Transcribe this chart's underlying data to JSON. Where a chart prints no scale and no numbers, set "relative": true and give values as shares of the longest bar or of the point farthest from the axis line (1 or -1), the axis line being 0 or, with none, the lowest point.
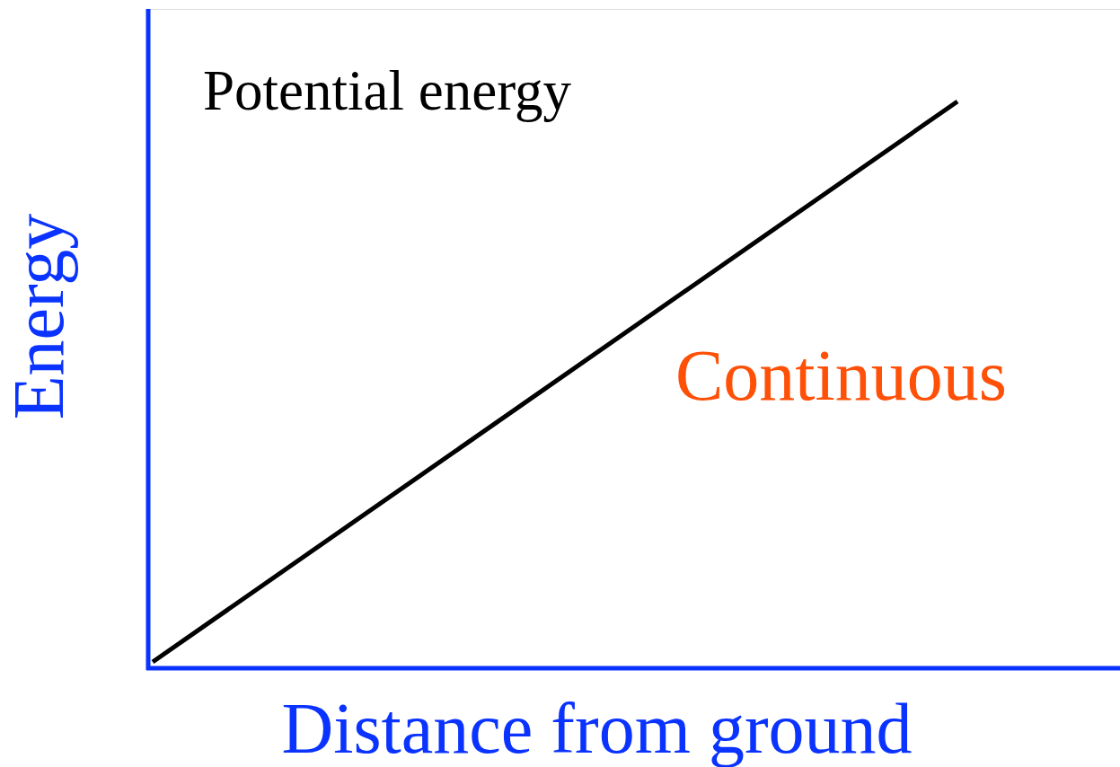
{
  "chart_data": {
    "type": "line",
    "relative": true,
    "xlabel": "Distance from ground",
    "ylabel": "Energy",
    "categories": [
      null,
      null
    ],
    "series": [
      {
        "color": "#000000",
        "values": [
          0,
          1
        ]
      }
    ],
    "annotations": [
      "Potential energy",
      "Continuous"
    ],
    "grid": false,
    "tick_labels": false,
    "marker": "none",
    "line_style": "solid"
  }
}
